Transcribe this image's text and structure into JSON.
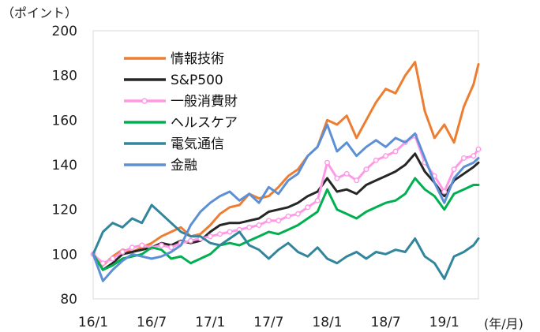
{
  "chart_data": {
    "type": "line",
    "y_unit": "（ポイント）",
    "x_unit": "(年/月)",
    "ylim": [
      80,
      200
    ],
    "y_ticks": [
      "80",
      "100",
      "120",
      "140",
      "160",
      "180",
      "200"
    ],
    "x_ticks": [
      "16/1",
      "16/7",
      "17/1",
      "17/7",
      "18/1",
      "18/7",
      "19/1"
    ],
    "x_tick_positions": [
      0,
      6,
      12,
      18,
      24,
      30,
      36
    ],
    "xlim": [
      0,
      39.5
    ],
    "grid": false,
    "legend": "top-left",
    "series": [
      {
        "name": "情報技術",
        "color": "#ed7d31",
        "marker": "none",
        "x": [
          0,
          1,
          2,
          3,
          4,
          5,
          6,
          7,
          8,
          9,
          10,
          11,
          12,
          13,
          14,
          15,
          16,
          17,
          18,
          19,
          20,
          21,
          22,
          23,
          24,
          25,
          26,
          27,
          28,
          29,
          30,
          31,
          32,
          33,
          34,
          35,
          36,
          37,
          38,
          39,
          39.5
        ],
        "values": [
          100,
          95,
          99,
          102,
          101,
          103,
          105,
          108,
          110,
          112,
          108,
          109,
          113,
          118,
          121,
          122,
          127,
          125,
          126,
          130,
          135,
          138,
          144,
          148,
          160,
          158,
          162,
          152,
          160,
          168,
          174,
          172,
          180,
          186,
          164,
          152,
          158,
          150,
          166,
          176,
          185
        ]
      },
      {
        "name": "S&P500",
        "color": "#262626",
        "marker": "none",
        "x": [
          0,
          1,
          2,
          3,
          4,
          5,
          6,
          7,
          8,
          9,
          10,
          11,
          12,
          13,
          14,
          15,
          16,
          17,
          18,
          19,
          20,
          21,
          22,
          23,
          24,
          25,
          26,
          27,
          28,
          29,
          30,
          31,
          32,
          33,
          34,
          35,
          36,
          37,
          38,
          39,
          39.5
        ],
        "values": [
          100,
          93,
          96,
          100,
          101,
          102,
          103,
          105,
          104,
          106,
          105,
          106,
          110,
          113,
          114,
          114,
          115,
          116,
          119,
          120,
          121,
          123,
          126,
          128,
          134,
          128,
          129,
          127,
          131,
          133,
          135,
          137,
          140,
          145,
          137,
          132,
          126,
          133,
          136,
          139,
          141
        ]
      },
      {
        "name": "一般消費財",
        "color": "#ff99e6",
        "marker": "circle",
        "x": [
          0,
          1,
          2,
          3,
          4,
          5,
          6,
          7,
          8,
          9,
          10,
          11,
          12,
          13,
          14,
          15,
          16,
          17,
          18,
          19,
          20,
          21,
          22,
          23,
          24,
          25,
          26,
          27,
          28,
          29,
          30,
          31,
          32,
          33,
          34,
          35,
          36,
          37,
          38,
          39,
          39.5
        ],
        "values": [
          100,
          96,
          98,
          101,
          103,
          104,
          103,
          104,
          103,
          105,
          106,
          107,
          108,
          109,
          110,
          111,
          112,
          113,
          115,
          115,
          117,
          118,
          121,
          124,
          141,
          134,
          136,
          133,
          138,
          142,
          144,
          146,
          150,
          153,
          141,
          135,
          128,
          138,
          143,
          144,
          147
        ]
      },
      {
        "name": "ヘルスケア",
        "color": "#00b050",
        "marker": "none",
        "x": [
          0,
          1,
          2,
          3,
          4,
          5,
          6,
          7,
          8,
          9,
          10,
          11,
          12,
          13,
          14,
          15,
          16,
          17,
          18,
          19,
          20,
          21,
          22,
          23,
          24,
          25,
          26,
          27,
          28,
          29,
          30,
          31,
          32,
          33,
          34,
          35,
          36,
          37,
          38,
          39,
          39.5
        ],
        "values": [
          100,
          93,
          95,
          98,
          99,
          100,
          103,
          102,
          98,
          99,
          96,
          98,
          100,
          104,
          105,
          104,
          106,
          108,
          110,
          109,
          111,
          113,
          116,
          119,
          129,
          120,
          118,
          116,
          119,
          121,
          123,
          124,
          127,
          134,
          129,
          126,
          120,
          127,
          129,
          131,
          131
        ]
      },
      {
        "name": "電気通信",
        "color": "#31859c",
        "marker": "none",
        "x": [
          0,
          1,
          2,
          3,
          4,
          5,
          6,
          7,
          8,
          9,
          10,
          11,
          12,
          13,
          14,
          15,
          16,
          17,
          18,
          19,
          20,
          21,
          22,
          23,
          24,
          25,
          26,
          27,
          28,
          29,
          30,
          31,
          32,
          33,
          34,
          35,
          36,
          37,
          38,
          39,
          39.5
        ],
        "values": [
          100,
          110,
          114,
          112,
          116,
          114,
          122,
          118,
          114,
          110,
          108,
          108,
          105,
          104,
          107,
          110,
          104,
          102,
          98,
          102,
          105,
          101,
          99,
          103,
          98,
          96,
          99,
          101,
          98,
          101,
          100,
          102,
          101,
          107,
          99,
          96,
          89,
          99,
          101,
          104,
          107
        ]
      },
      {
        "name": "金融",
        "color": "#5b8fd6",
        "marker": "none",
        "x": [
          0,
          1,
          2,
          3,
          4,
          5,
          6,
          7,
          8,
          9,
          10,
          11,
          12,
          13,
          14,
          15,
          16,
          17,
          18,
          19,
          20,
          21,
          22,
          23,
          24,
          25,
          26,
          27,
          28,
          29,
          30,
          31,
          32,
          33,
          34,
          35,
          36,
          37,
          38,
          39,
          39.5
        ],
        "values": [
          100,
          88,
          93,
          97,
          100,
          99,
          98,
          99,
          101,
          104,
          113,
          119,
          123,
          126,
          128,
          124,
          127,
          123,
          130,
          127,
          133,
          136,
          144,
          148,
          158,
          146,
          150,
          144,
          148,
          151,
          148,
          152,
          150,
          154,
          143,
          132,
          123,
          134,
          139,
          141,
          143
        ]
      }
    ]
  }
}
